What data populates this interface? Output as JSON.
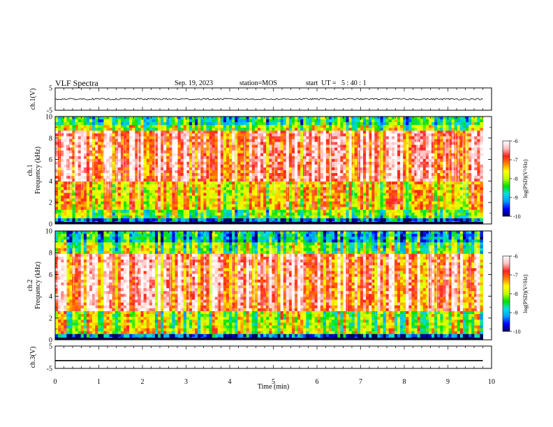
{
  "header": {
    "title": "VLF Spectra",
    "date": "Sep. 19, 2023",
    "station": "station=MOS",
    "start": "start  UT =   5 : 40 : 1"
  },
  "chart_data": [
    {
      "type": "line",
      "panel": "ch1-voltage",
      "ylabel": "ch.1(V)",
      "xlim": [
        0,
        10
      ],
      "ylim": [
        -5,
        5
      ],
      "yticks": [
        "5",
        "-5"
      ],
      "series": [
        {
          "x": [
            0,
            9.8
          ],
          "values": [
            0,
            0
          ],
          "style": "noisy trace"
        }
      ]
    },
    {
      "type": "heatmap",
      "panel": "ch1-spectrogram",
      "ylabel": "ch.1\nFrequency (kHz)",
      "xlim": [
        0,
        10
      ],
      "ylim": [
        0,
        10
      ],
      "yticks": [
        "0",
        "2",
        "4",
        "6",
        "8",
        "10"
      ],
      "colorbar": {
        "label": "log(PSD)(V²/Hz)",
        "range": [
          -10,
          -6
        ],
        "ticks": [
          "-6",
          "-7",
          "-8",
          "-9",
          "-10"
        ]
      }
    },
    {
      "type": "heatmap",
      "panel": "ch2-spectrogram",
      "ylabel": "ch.2\nFrequency (kHz)",
      "xlim": [
        0,
        10
      ],
      "ylim": [
        0,
        10
      ],
      "yticks": [
        "0",
        "2",
        "4",
        "6",
        "8",
        "10"
      ],
      "colorbar": {
        "label": "log(PSD)(V²/Hz)",
        "range": [
          -10,
          -6
        ],
        "ticks": [
          "-6",
          "-7",
          "-8",
          "-9",
          "-10"
        ]
      }
    },
    {
      "type": "line",
      "panel": "ch3-voltage",
      "ylabel": "ch.3(V)",
      "xlim": [
        0,
        10
      ],
      "ylim": [
        -5,
        5
      ],
      "yticks": [
        "5",
        "-5"
      ],
      "series": [
        {
          "x": [
            0,
            9.8
          ],
          "values": [
            -1.5,
            -1.5
          ]
        }
      ]
    }
  ],
  "xaxis": {
    "label": "Time (min)",
    "ticks": [
      "0",
      "1",
      "2",
      "3",
      "4",
      "5",
      "6",
      "7",
      "8",
      "9",
      "10"
    ]
  },
  "colors": {
    "scale": [
      "#000060",
      "#0000ff",
      "#00a0ff",
      "#00e0e0",
      "#00e000",
      "#c0ff00",
      "#ffff00",
      "#ff8000",
      "#ff2020",
      "#ffc0c0",
      "#ffffff"
    ]
  }
}
